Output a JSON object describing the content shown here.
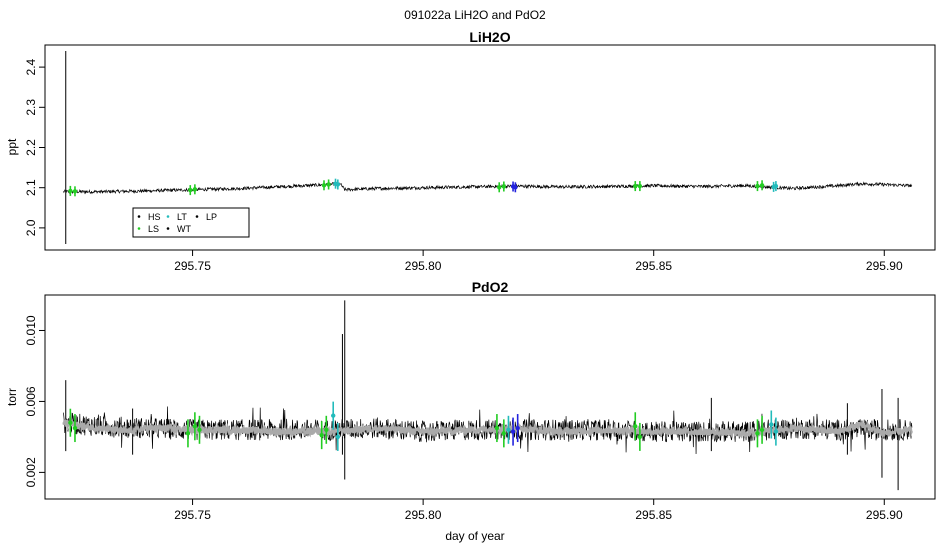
{
  "figure": {
    "title": "091022a   LiH2O and PdO2",
    "xlabel": "day of year"
  },
  "chart_data": [
    {
      "type": "line",
      "title": "LiH2O",
      "xlabel": "",
      "ylabel": "ppt",
      "xlim": [
        295.718,
        295.911
      ],
      "ylim": [
        1.945,
        2.455
      ],
      "xticks": [
        295.75,
        295.8,
        295.85,
        295.9
      ],
      "xtick_labels": [
        "295.75",
        "295.80",
        "295.85",
        "295.90"
      ],
      "yticks": [
        2.0,
        2.1,
        2.2,
        2.3,
        2.4
      ],
      "ytick_labels": [
        "2.0",
        "2.1",
        "2.2",
        "2.3",
        "2.4"
      ],
      "legend": {
        "position": "bottom-left",
        "entries": [
          {
            "label": "HS",
            "color": "#000000"
          },
          {
            "label": "LS",
            "color": "#22cc22"
          },
          {
            "label": "LT",
            "color": "#22bbbb"
          },
          {
            "label": "WT",
            "color": "#000000"
          },
          {
            "label": "LP",
            "color": "#000000"
          }
        ]
      },
      "series": [
        {
          "color": "#000000",
          "x": [
            295.722,
            295.73,
            295.74,
            295.75,
            295.76,
            295.77,
            295.778,
            295.782,
            295.783,
            295.79,
            295.8,
            295.81,
            295.82,
            295.83,
            295.84,
            295.85,
            295.86,
            295.87,
            295.88,
            295.89,
            295.895,
            295.906
          ],
          "y": [
            2.09,
            2.09,
            2.092,
            2.095,
            2.098,
            2.103,
            2.107,
            2.11,
            2.095,
            2.098,
            2.1,
            2.102,
            2.104,
            2.102,
            2.103,
            2.105,
            2.103,
            2.105,
            2.098,
            2.105,
            2.11,
            2.105
          ],
          "noise": 0.004,
          "spike": {
            "x": 295.7225,
            "ymin": 1.96,
            "ymax": 2.44
          }
        }
      ],
      "markers": [
        {
          "label": "LS",
          "color": "#22cc22",
          "x": [
            295.7235,
            295.7245,
            295.7495,
            295.7505,
            295.7785,
            295.7795,
            295.8165,
            295.8175,
            295.846,
            295.847,
            295.8725,
            295.8735
          ],
          "y": [
            2.092,
            2.091,
            2.094,
            2.096,
            2.106,
            2.108,
            2.101,
            2.103,
            2.104,
            2.104,
            2.104,
            2.106
          ]
        },
        {
          "label": "LT",
          "color": "#22bbbb",
          "x": [
            295.781,
            295.7815,
            295.876,
            295.8765
          ],
          "y": [
            2.11,
            2.108,
            2.102,
            2.104
          ]
        },
        {
          "label": "LP",
          "color": "#2222dd",
          "x": [
            295.8195,
            295.82
          ],
          "y": [
            2.103,
            2.101
          ]
        }
      ]
    },
    {
      "type": "line",
      "title": "PdO2",
      "xlabel": "day of year",
      "ylabel": "torr",
      "xlim": [
        295.718,
        295.911
      ],
      "ylim": [
        0.0005,
        0.012
      ],
      "xticks": [
        295.75,
        295.8,
        295.85,
        295.9
      ],
      "xtick_labels": [
        "295.75",
        "295.80",
        "295.85",
        "295.90"
      ],
      "yticks": [
        0.002,
        0.006,
        0.01
      ],
      "ytick_labels": [
        "0.002",
        "0.006",
        "0.010"
      ],
      "series": [
        {
          "color": "#000000",
          "x": [
            295.722,
            295.73,
            295.74,
            295.75,
            295.76,
            295.77,
            295.78,
            295.79,
            295.8,
            295.81,
            295.82,
            295.83,
            295.84,
            295.85,
            295.86,
            295.87,
            295.88,
            295.89,
            295.9,
            295.906
          ],
          "y": [
            0.0048,
            0.0046,
            0.0045,
            0.0044,
            0.0044,
            0.0044,
            0.0044,
            0.0045,
            0.0043,
            0.0044,
            0.0044,
            0.0044,
            0.0044,
            0.0043,
            0.0043,
            0.0043,
            0.0045,
            0.0044,
            0.0044,
            0.0044
          ],
          "noise": 0.0006,
          "spikes": [
            {
              "x": 295.7225,
              "ymin": 0.0032,
              "ymax": 0.0072
            },
            {
              "x": 295.783,
              "ymin": 0.0016,
              "ymax": 0.0117
            },
            {
              "x": 295.7825,
              "ymin": 0.003,
              "ymax": 0.0098
            },
            {
              "x": 295.737,
              "ymin": 0.003,
              "ymax": 0.0056
            },
            {
              "x": 295.8625,
              "ymin": 0.0032,
              "ymax": 0.0062
            },
            {
              "x": 295.8995,
              "ymin": 0.0017,
              "ymax": 0.0067
            },
            {
              "x": 295.903,
              "ymin": 0.001,
              "ymax": 0.0062
            },
            {
              "x": 295.892,
              "ymin": 0.003,
              "ymax": 0.0059
            }
          ]
        },
        {
          "color": "#aaaaaa",
          "x": [
            295.722,
            295.726,
            295.73,
            295.735,
            295.74,
            295.75,
            295.76,
            295.77,
            295.78,
            295.79,
            295.8,
            295.81,
            295.82,
            295.83,
            295.84,
            295.85,
            295.86,
            295.87,
            295.88,
            295.89,
            295.895,
            295.9,
            295.906
          ],
          "y": [
            0.0048,
            0.0046,
            0.0045,
            0.0043,
            0.0045,
            0.0044,
            0.0044,
            0.0043,
            0.0043,
            0.0045,
            0.0043,
            0.0044,
            0.0045,
            0.0043,
            0.0044,
            0.0043,
            0.0043,
            0.0042,
            0.0045,
            0.0043,
            0.0047,
            0.0042,
            0.0044
          ],
          "noise": 0.0002
        }
      ],
      "markers": [
        {
          "label": "LS",
          "color": "#22cc22",
          "x": [
            295.7235,
            295.7245,
            295.749,
            295.7505,
            295.7515,
            295.778,
            295.779,
            295.816,
            295.8175,
            295.846,
            295.847,
            295.8725,
            295.8735
          ],
          "y": [
            0.0048,
            0.0045,
            0.0042,
            0.0046,
            0.0044,
            0.0041,
            0.0044,
            0.0045,
            0.0042,
            0.0046,
            0.004,
            0.0042,
            0.0044
          ]
        },
        {
          "label": "LT",
          "color": "#22bbbb",
          "x": [
            295.7805,
            295.7815,
            295.8185,
            295.8755,
            295.8765
          ],
          "y": [
            0.0052,
            0.004,
            0.0044,
            0.0047,
            0.0043
          ]
        },
        {
          "label": "LP",
          "color": "#2222dd",
          "x": [
            295.8195,
            295.8205
          ],
          "y": [
            0.0043,
            0.0045
          ]
        }
      ]
    }
  ]
}
